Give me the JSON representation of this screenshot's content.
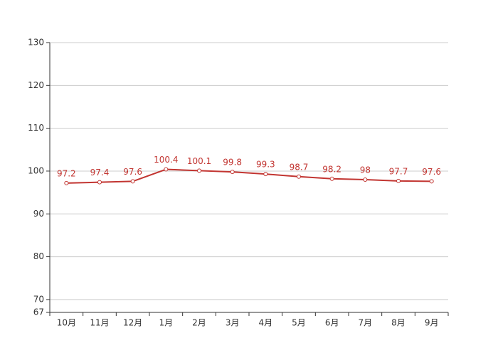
{
  "chart_data": {
    "type": "line",
    "categories": [
      "10月",
      "11月",
      "12月",
      "1月",
      "2月",
      "3月",
      "4月",
      "5月",
      "6月",
      "7月",
      "8月",
      "9月"
    ],
    "series": [
      {
        "color": "#c23531",
        "values": [
          97.2,
          97.4,
          97.6,
          100.4,
          100.1,
          99.8,
          99.3,
          98.7,
          98.2,
          98,
          97.7,
          97.6
        ]
      }
    ],
    "ylim": [
      67,
      130
    ],
    "yticks": [
      67,
      70,
      80,
      90,
      100,
      110,
      120,
      130
    ],
    "grid": true
  }
}
